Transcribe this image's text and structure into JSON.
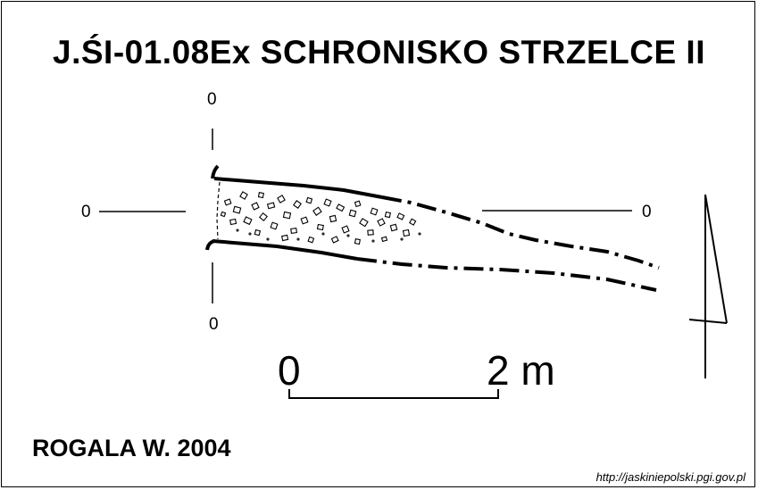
{
  "title": "J.ŚI-01.08Ex SCHRONISKO STRZELCE II",
  "axis_marks": {
    "top": "0",
    "bottom": "0",
    "left": "0",
    "right": "0"
  },
  "scale": {
    "start_label": "0",
    "end_label": "2 m"
  },
  "author": "ROGALA W. 2004",
  "source_url": "http://jaskiniepolski.pgi.gov.pl"
}
